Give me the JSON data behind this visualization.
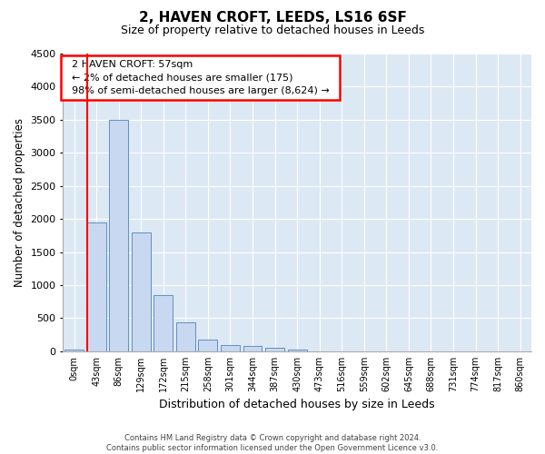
{
  "title": "2, HAVEN CROFT, LEEDS, LS16 6SF",
  "subtitle": "Size of property relative to detached houses in Leeds",
  "xlabel": "Distribution of detached houses by size in Leeds",
  "ylabel": "Number of detached properties",
  "footer_line1": "Contains HM Land Registry data © Crown copyright and database right 2024.",
  "footer_line2": "Contains public sector information licensed under the Open Government Licence v3.0.",
  "annotation_line1": "2 HAVEN CROFT: 57sqm",
  "annotation_line2": "← 2% of detached houses are smaller (175)",
  "annotation_line3": "98% of semi-detached houses are larger (8,624) →",
  "bar_labels": [
    "0sqm",
    "43sqm",
    "86sqm",
    "129sqm",
    "172sqm",
    "215sqm",
    "258sqm",
    "301sqm",
    "344sqm",
    "387sqm",
    "430sqm",
    "473sqm",
    "516sqm",
    "559sqm",
    "602sqm",
    "645sqm",
    "688sqm",
    "731sqm",
    "774sqm",
    "817sqm",
    "860sqm"
  ],
  "bar_values": [
    25,
    1950,
    3500,
    1800,
    850,
    440,
    175,
    100,
    80,
    60,
    30,
    0,
    0,
    0,
    0,
    0,
    0,
    0,
    0,
    0,
    0
  ],
  "bar_color": "#c8d8f0",
  "bar_edge_color": "#6090c0",
  "marker_color": "red",
  "marker_bar_index": 1,
  "ylim": [
    0,
    4500
  ],
  "yticks": [
    0,
    500,
    1000,
    1500,
    2000,
    2500,
    3000,
    3500,
    4000,
    4500
  ],
  "plot_background": "#dde8f5",
  "title_fontsize": 11,
  "subtitle_fontsize": 9,
  "annotation_box_color": "white",
  "annotation_box_edge": "red",
  "grid_color": "#ffffff"
}
